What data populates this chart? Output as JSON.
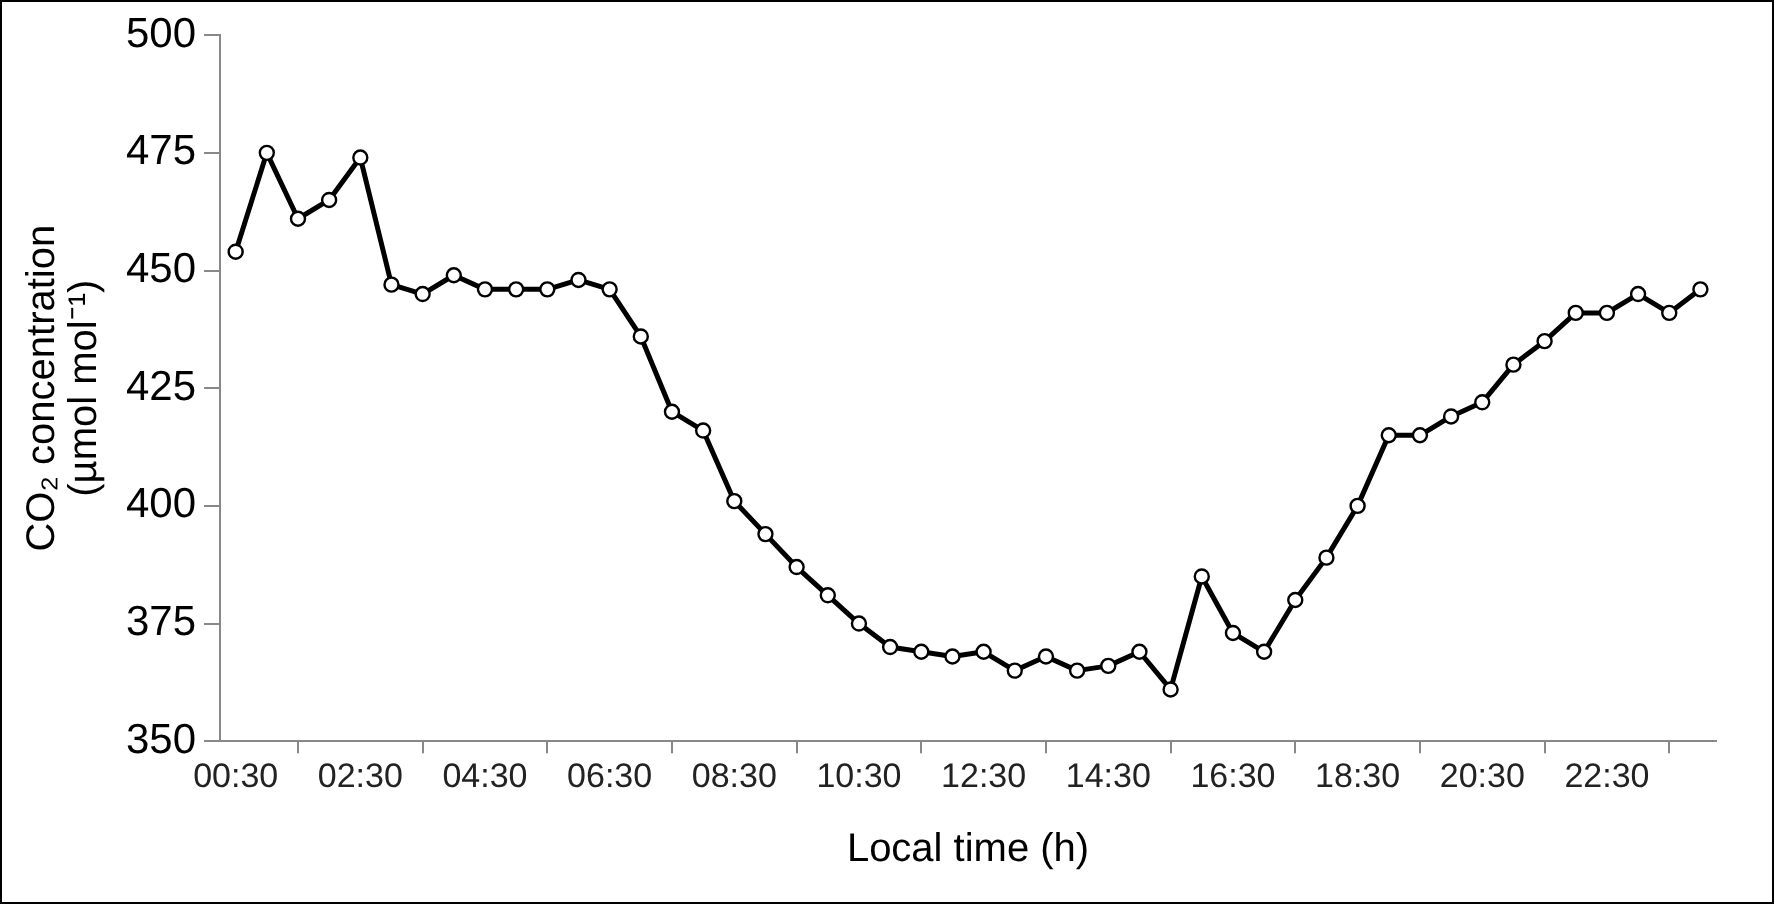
{
  "chart_data": {
    "type": "line",
    "xlabel": "Local time (h)",
    "ylabel": "CO₂ concentration (µmol mol⁻¹)",
    "categories": [
      "00:30",
      null,
      null,
      null,
      "02:30",
      null,
      null,
      null,
      "04:30",
      null,
      null,
      null,
      "06:30",
      null,
      null,
      null,
      "08:30",
      null,
      null,
      null,
      "10:30",
      null,
      null,
      null,
      "12:30",
      null,
      null,
      null,
      "14:30",
      null,
      null,
      null,
      "16:30",
      null,
      null,
      null,
      "18:30",
      null,
      null,
      null,
      "20:30",
      null,
      null,
      null,
      "22:30",
      null,
      null,
      null
    ],
    "series": [
      {
        "color": "#000000",
        "values": [
          454,
          475,
          461,
          465,
          474,
          447,
          445,
          449,
          446,
          446,
          446,
          448,
          446,
          436,
          420,
          416,
          401,
          394,
          387,
          381,
          375,
          370,
          369,
          368,
          369,
          365,
          368,
          365,
          366,
          369,
          361,
          385,
          373,
          369,
          380,
          389,
          400,
          415,
          415,
          419,
          422,
          430,
          435,
          441,
          441,
          445,
          441,
          446
        ]
      }
    ],
    "ylim": [
      350,
      500
    ],
    "yticks": [
      350,
      375,
      400,
      425,
      450,
      475,
      500
    ],
    "grid": false,
    "legend": false,
    "marker": "circle",
    "line_style": "solid"
  }
}
